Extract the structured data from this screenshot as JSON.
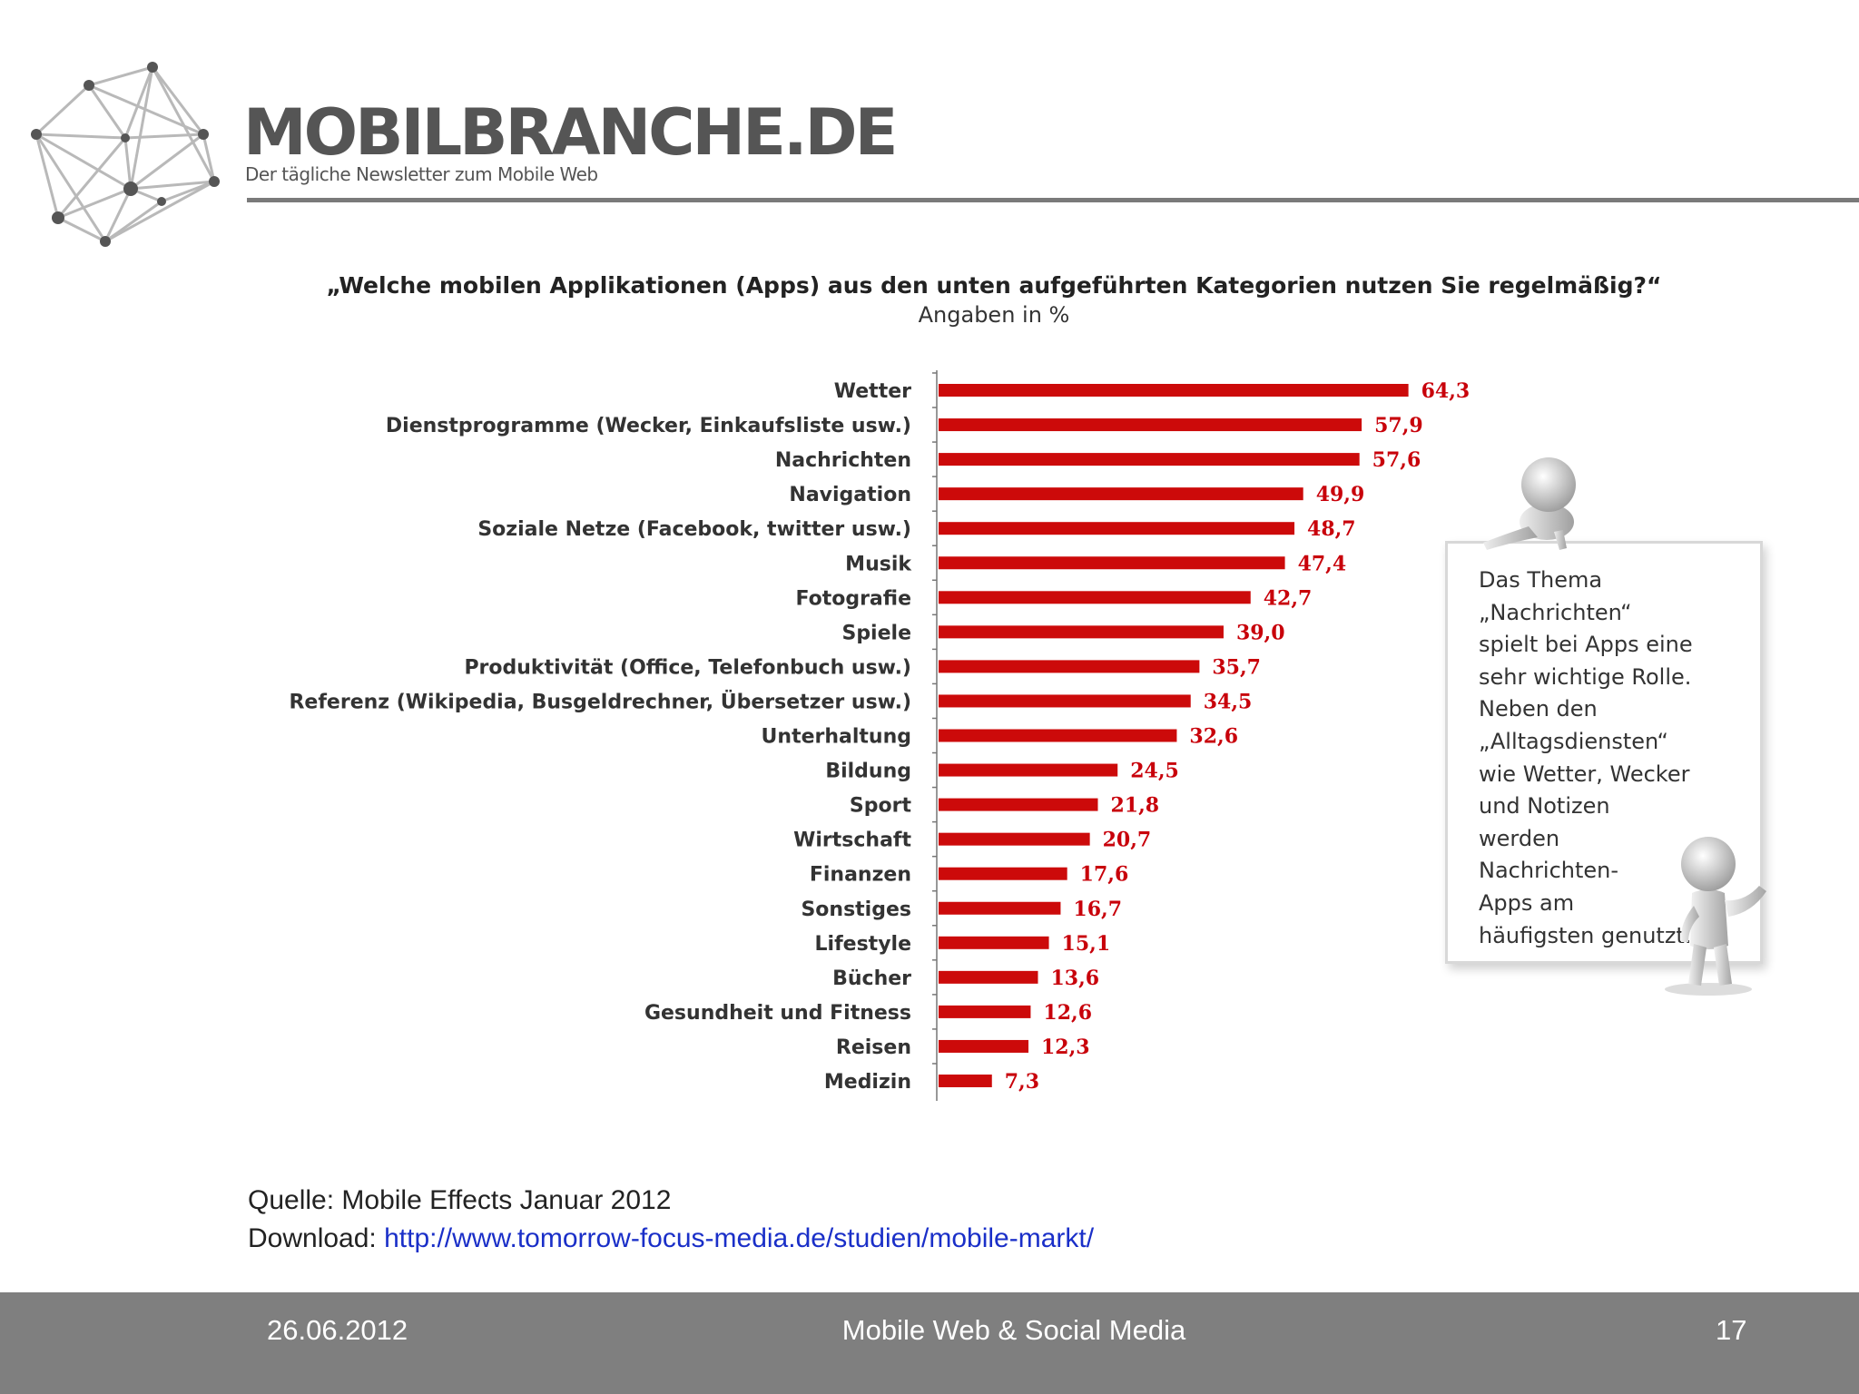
{
  "header": {
    "brand_name": "MOBILBRANCHE.DE",
    "tagline": "Der tägliche Newsletter zum Mobile Web"
  },
  "chart_data": {
    "type": "bar",
    "orientation": "horizontal",
    "title": "„Welche mobilen Applikationen (Apps) aus den unten aufgeführten Kategorien nutzen Sie regelmäßig?“",
    "subtitle": "Angaben in %",
    "categories": [
      "Wetter",
      "Dienstprogramme (Wecker, Einkaufsliste usw.)",
      "Nachrichten",
      "Navigation",
      "Soziale Netze (Facebook, twitter usw.)",
      "Musik",
      "Fotografie",
      "Spiele",
      "Produktivität (Office, Telefonbuch usw.)",
      "Referenz (Wikipedia, Busgeldrechner, Übersetzer usw.)",
      "Unterhaltung",
      "Bildung",
      "Sport",
      "Wirtschaft",
      "Finanzen",
      "Sonstiges",
      "Lifestyle",
      "Bücher",
      "Gesundheit und Fitness",
      "Reisen",
      "Medizin"
    ],
    "values": [
      64.3,
      57.9,
      57.6,
      49.9,
      48.7,
      47.4,
      42.7,
      39.0,
      35.7,
      34.5,
      32.6,
      24.5,
      21.8,
      20.7,
      17.6,
      16.7,
      15.1,
      13.6,
      12.6,
      12.3,
      7.3
    ],
    "value_labels": [
      "64,3",
      "57,9",
      "57,6",
      "49,9",
      "48,7",
      "47,4",
      "42,7",
      "39,0",
      "35,7",
      "34,5",
      "32,6",
      "24,5",
      "21,8",
      "20,7",
      "17,6",
      "16,7",
      "15,1",
      "13,6",
      "12,6",
      "12,3",
      "7,3"
    ],
    "bar_color": "#cc0a0a",
    "label_color": "#c8000a",
    "xlim": [
      0,
      100
    ],
    "grid": false,
    "legend": "none"
  },
  "callout": {
    "lines": [
      "Das Thema",
      "„Nachrichten“",
      "spielt bei Apps eine",
      "sehr wichtige Rolle.",
      "Neben den",
      "„Alltagsdiensten“",
      "wie Wetter, Wecker",
      "und Notizen",
      "werden",
      "Nachrichten-",
      "Apps am",
      "häufigsten genutzt."
    ]
  },
  "source": {
    "source_text": "Quelle: Mobile Effects Januar 2012",
    "download_label": "Download: ",
    "download_link": "http://www.tomorrow-focus-media.de/studien/mobile-markt/"
  },
  "footer": {
    "date": "26.06.2012",
    "title": "Mobile Web & Social Media",
    "page_number": "17"
  }
}
